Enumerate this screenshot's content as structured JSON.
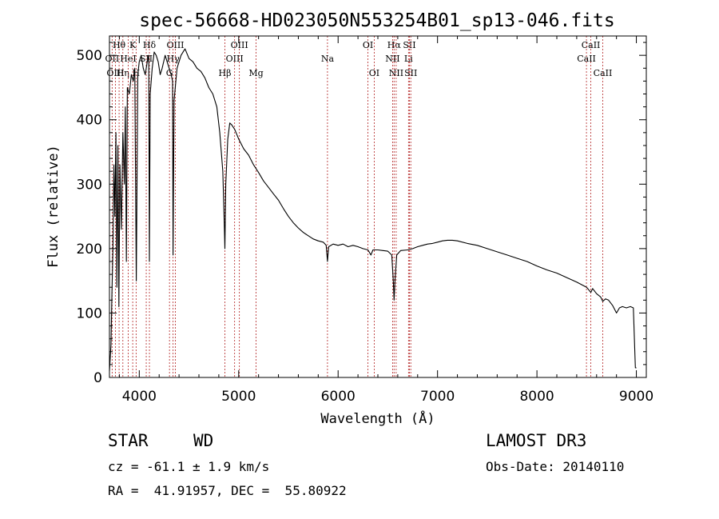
{
  "chart_data": {
    "type": "line",
    "title": "spec-56668-HD023050N553254B01_sp13-046.fits",
    "xlabel": "Wavelength (Å)",
    "ylabel": "Flux (relative)",
    "xlim": [
      3700,
      9100
    ],
    "ylim": [
      0,
      530
    ],
    "xticks": [
      4000,
      5000,
      6000,
      7000,
      8000,
      9000
    ],
    "yticks": [
      0,
      100,
      200,
      300,
      400,
      500
    ],
    "series": [
      {
        "name": "flux",
        "points": [
          [
            3700,
            10
          ],
          [
            3715,
            50
          ],
          [
            3725,
            130
          ],
          [
            3735,
            200
          ],
          [
            3745,
            330
          ],
          [
            3755,
            250
          ],
          [
            3765,
            380
          ],
          [
            3775,
            140
          ],
          [
            3785,
            360
          ],
          [
            3795,
            110
          ],
          [
            3805,
            330
          ],
          [
            3820,
            230
          ],
          [
            3835,
            380
          ],
          [
            3850,
            300
          ],
          [
            3860,
            420
          ],
          [
            3870,
            180
          ],
          [
            3880,
            450
          ],
          [
            3900,
            440
          ],
          [
            3920,
            470
          ],
          [
            3940,
            460
          ],
          [
            3955,
            480
          ],
          [
            3970,
            150
          ],
          [
            3985,
            470
          ],
          [
            4000,
            490
          ],
          [
            4020,
            500
          ],
          [
            4040,
            480
          ],
          [
            4060,
            470
          ],
          [
            4080,
            490
          ],
          [
            4095,
            500
          ],
          [
            4102,
            180
          ],
          [
            4110,
            440
          ],
          [
            4130,
            480
          ],
          [
            4150,
            505
          ],
          [
            4170,
            500
          ],
          [
            4190,
            490
          ],
          [
            4210,
            470
          ],
          [
            4230,
            480
          ],
          [
            4260,
            500
          ],
          [
            4280,
            490
          ],
          [
            4300,
            480
          ],
          [
            4320,
            470
          ],
          [
            4335,
            460
          ],
          [
            4340,
            190
          ],
          [
            4350,
            430
          ],
          [
            4380,
            480
          ],
          [
            4420,
            500
          ],
          [
            4460,
            510
          ],
          [
            4500,
            495
          ],
          [
            4540,
            490
          ],
          [
            4580,
            480
          ],
          [
            4620,
            475
          ],
          [
            4660,
            465
          ],
          [
            4700,
            450
          ],
          [
            4740,
            440
          ],
          [
            4780,
            420
          ],
          [
            4810,
            380
          ],
          [
            4840,
            320
          ],
          [
            4855,
            240
          ],
          [
            4861,
            200
          ],
          [
            4870,
            300
          ],
          [
            4890,
            370
          ],
          [
            4910,
            395
          ],
          [
            4930,
            392
          ],
          [
            4960,
            385
          ],
          [
            5000,
            370
          ],
          [
            5050,
            355
          ],
          [
            5100,
            345
          ],
          [
            5150,
            330
          ],
          [
            5200,
            318
          ],
          [
            5250,
            305
          ],
          [
            5300,
            295
          ],
          [
            5350,
            285
          ],
          [
            5400,
            275
          ],
          [
            5450,
            262
          ],
          [
            5500,
            250
          ],
          [
            5550,
            240
          ],
          [
            5600,
            232
          ],
          [
            5650,
            225
          ],
          [
            5700,
            220
          ],
          [
            5750,
            215
          ],
          [
            5800,
            212
          ],
          [
            5850,
            210
          ],
          [
            5880,
            205
          ],
          [
            5893,
            180
          ],
          [
            5905,
            203
          ],
          [
            5950,
            207
          ],
          [
            6000,
            205
          ],
          [
            6050,
            207
          ],
          [
            6100,
            203
          ],
          [
            6150,
            205
          ],
          [
            6200,
            203
          ],
          [
            6250,
            200
          ],
          [
            6300,
            198
          ],
          [
            6330,
            190
          ],
          [
            6350,
            198
          ],
          [
            6400,
            198
          ],
          [
            6450,
            197
          ],
          [
            6500,
            196
          ],
          [
            6540,
            190
          ],
          [
            6555,
            150
          ],
          [
            6563,
            120
          ],
          [
            6572,
            150
          ],
          [
            6590,
            190
          ],
          [
            6630,
            197
          ],
          [
            6700,
            198
          ],
          [
            6750,
            200
          ],
          [
            6800,
            203
          ],
          [
            6850,
            205
          ],
          [
            6900,
            207
          ],
          [
            6950,
            208
          ],
          [
            7000,
            210
          ],
          [
            7050,
            212
          ],
          [
            7100,
            213
          ],
          [
            7150,
            213
          ],
          [
            7200,
            212
          ],
          [
            7300,
            208
          ],
          [
            7400,
            205
          ],
          [
            7500,
            200
          ],
          [
            7600,
            195
          ],
          [
            7700,
            190
          ],
          [
            7800,
            185
          ],
          [
            7900,
            180
          ],
          [
            8000,
            173
          ],
          [
            8100,
            167
          ],
          [
            8200,
            162
          ],
          [
            8300,
            155
          ],
          [
            8400,
            148
          ],
          [
            8500,
            140
          ],
          [
            8542,
            132
          ],
          [
            8560,
            138
          ],
          [
            8600,
            130
          ],
          [
            8640,
            125
          ],
          [
            8662,
            118
          ],
          [
            8690,
            122
          ],
          [
            8720,
            120
          ],
          [
            8760,
            112
          ],
          [
            8800,
            100
          ],
          [
            8830,
            108
          ],
          [
            8860,
            110
          ],
          [
            8900,
            108
          ],
          [
            8940,
            110
          ],
          [
            8970,
            108
          ],
          [
            8990,
            15
          ],
          [
            9000,
            15
          ]
        ]
      }
    ],
    "lines": [
      {
        "label": "Hθ",
        "x": 3797,
        "row": 1
      },
      {
        "label": "OII",
        "x": 3727,
        "row": 2
      },
      {
        "label": "OIII",
        "x": 3760,
        "row": 3
      },
      {
        "label": "Hη",
        "x": 3835,
        "row": 3
      },
      {
        "label": "K",
        "x": 3934,
        "row": 1
      },
      {
        "label": "HeI",
        "x": 3889,
        "row": 2
      },
      {
        "label": "SII",
        "x": 4070,
        "row": 2
      },
      {
        "label": "H",
        "x": 3968,
        "row": 3
      },
      {
        "label": "Hδ",
        "x": 4102,
        "row": 1
      },
      {
        "label": "OIII",
        "x": 4363,
        "row": 1
      },
      {
        "label": "Hγ",
        "x": 4340,
        "row": 2
      },
      {
        "label": "G",
        "x": 4304,
        "row": 3
      },
      {
        "label": "OIII",
        "x": 5007,
        "row": 1
      },
      {
        "label": "OIII",
        "x": 4959,
        "row": 2
      },
      {
        "label": "Hβ",
        "x": 4861,
        "row": 3
      },
      {
        "label": "Mg",
        "x": 5175,
        "row": 3
      },
      {
        "label": "Na",
        "x": 5893,
        "row": 2
      },
      {
        "label": "OI",
        "x": 6300,
        "row": 1
      },
      {
        "label": "OI",
        "x": 6363,
        "row": 3
      },
      {
        "label": "Hα",
        "x": 6563,
        "row": 1
      },
      {
        "label": "SII",
        "x": 6717,
        "row": 1
      },
      {
        "label": "NII",
        "x": 6548,
        "row": 2
      },
      {
        "label": "Li",
        "x": 6708,
        "row": 2
      },
      {
        "label": "NII",
        "x": 6584,
        "row": 3
      },
      {
        "label": "SII",
        "x": 6731,
        "row": 3
      },
      {
        "label": "CaII",
        "x": 8542,
        "row": 1
      },
      {
        "label": "CaII",
        "x": 8498,
        "row": 2
      },
      {
        "label": "CaII",
        "x": 8662,
        "row": 3
      }
    ]
  },
  "info": {
    "class": "STAR",
    "subclass": "WD",
    "survey": "LAMOST DR3",
    "cz": "cz = -61.1 ± 1.9 km/s",
    "obs_date": "Obs-Date: 20140110",
    "coords": "RA =  41.91957, DEC =  55.80922"
  },
  "colors": {
    "spectrum": "#000000",
    "line_marker": "#b22222"
  }
}
